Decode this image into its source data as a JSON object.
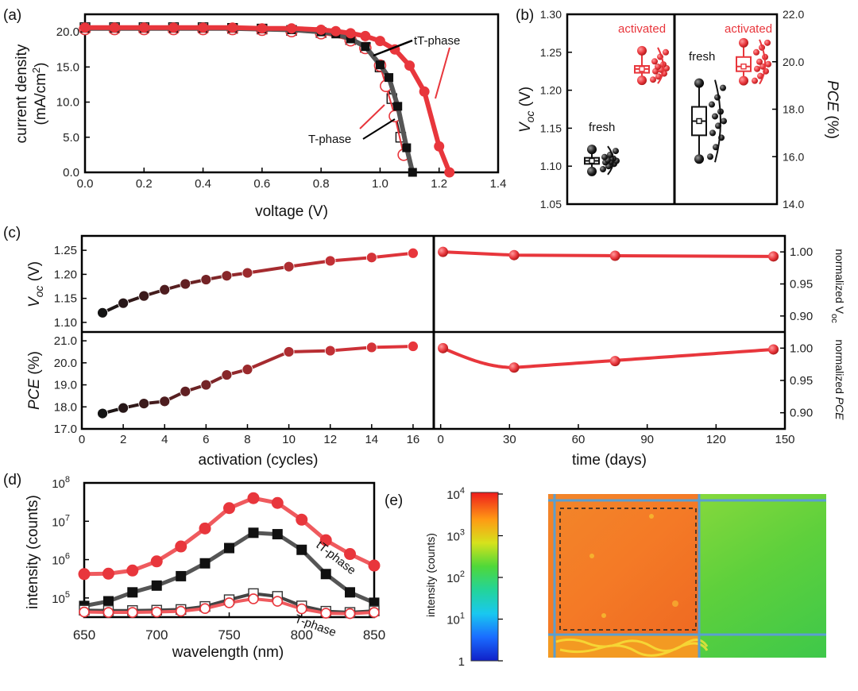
{
  "colors": {
    "red": "#e8363c",
    "darkred": "#8b0d0d",
    "black": "#111111",
    "grey": "#555555",
    "lightred": "#ef5a5e"
  },
  "panel_labels": {
    "a": "(a)",
    "b": "(b)",
    "c": "(c)",
    "d": "(d)",
    "e": "(e)"
  },
  "chart_data": [
    {
      "id": "a",
      "type": "line",
      "xlabel": "voltage (V)",
      "ylabel_line1": "current density",
      "ylabel_line2": "(mA/cm",
      "ylabel_sup": "2",
      "ylabel_close": ")",
      "xlim": [
        0,
        1.4
      ],
      "ylim": [
        0,
        22.5
      ],
      "xticks": [
        "0.0",
        "0.2",
        "0.4",
        "0.6",
        "0.8",
        "1.0",
        "1.2",
        "1.4"
      ],
      "yticks": [
        "0.0",
        "5.0",
        "10.0",
        "15.0",
        "20.0"
      ],
      "annotations": {
        "tT": "tT-phase",
        "T": "T-phase"
      },
      "series": [
        {
          "name": "tT-phase",
          "color": "#e8363c",
          "marker": "circle",
          "x": [
            0,
            0.1,
            0.2,
            0.3,
            0.4,
            0.5,
            0.6,
            0.7,
            0.8,
            0.85,
            0.9,
            0.95,
            1.0,
            1.05,
            1.1,
            1.15,
            1.2,
            1.235
          ],
          "y": [
            20.6,
            20.6,
            20.6,
            20.6,
            20.6,
            20.6,
            20.5,
            20.5,
            20.3,
            20.1,
            19.8,
            19.4,
            18.7,
            17.5,
            15.2,
            11.5,
            3.7,
            0
          ]
        },
        {
          "name": "T-phase",
          "color": "#555555",
          "marker": "square",
          "x": [
            0,
            0.1,
            0.2,
            0.3,
            0.4,
            0.5,
            0.6,
            0.7,
            0.8,
            0.85,
            0.9,
            0.95,
            1.0,
            1.03,
            1.06,
            1.09,
            1.11
          ],
          "y": [
            20.5,
            20.5,
            20.5,
            20.5,
            20.5,
            20.5,
            20.4,
            20.3,
            20.0,
            19.7,
            19.0,
            17.9,
            15.3,
            13.5,
            9.4,
            3.5,
            0
          ]
        },
        {
          "name": "T-phase (activated)",
          "color": "#e8363c",
          "marker": "circle-open",
          "x": [
            0,
            0.1,
            0.2,
            0.3,
            0.4,
            0.5,
            0.6,
            0.7,
            0.8,
            0.9,
            0.95,
            1.0,
            1.02,
            1.05,
            1.08
          ],
          "y": [
            20.4,
            20.4,
            20.4,
            20.4,
            20.4,
            20.4,
            20.3,
            20.1,
            19.8,
            18.8,
            17.7,
            15.2,
            12.3,
            8.0,
            2.5
          ]
        },
        {
          "name": "T-phase (fresh)",
          "color": "#111111",
          "marker": "square-open",
          "x": [
            0,
            0.1,
            0.2,
            0.3,
            0.4,
            0.5,
            0.6,
            0.7,
            0.8,
            0.9,
            0.95,
            1.0,
            1.04,
            1.07
          ],
          "y": [
            20.6,
            20.6,
            20.6,
            20.6,
            20.6,
            20.5,
            20.4,
            20.2,
            19.9,
            18.9,
            17.8,
            15.0,
            10.5,
            5.0
          ]
        }
      ]
    },
    {
      "id": "b",
      "type": "box",
      "ylabel_left": "V",
      "ylabel_left_sub": "oc",
      "ylabel_left_unit": " (V)",
      "ylabel_right": "PCE",
      "ylabel_right_unit": " (%)",
      "ylim_left": [
        1.05,
        1.3
      ],
      "ylim_right": [
        14.0,
        22.0
      ],
      "yticks_left": [
        "1.05",
        "1.10",
        "1.15",
        "1.20",
        "1.25",
        "1.30"
      ],
      "yticks_right": [
        "14.0",
        "16.0",
        "18.0",
        "20.0",
        "22.0"
      ],
      "groups": [
        {
          "label": "fresh",
          "metric": "Voc",
          "color": "#111111",
          "median": 1.107,
          "q1": 1.103,
          "q3": 1.111,
          "min": 1.093,
          "max": 1.122,
          "points": [
            1.096,
            1.1,
            1.103,
            1.105,
            1.106,
            1.107,
            1.108,
            1.11,
            1.112,
            1.115,
            1.12
          ]
        },
        {
          "label": "activated",
          "metric": "Voc",
          "color": "#e8363c",
          "median": 1.228,
          "q1": 1.223,
          "q3": 1.232,
          "min": 1.213,
          "max": 1.252,
          "points": [
            1.214,
            1.218,
            1.222,
            1.225,
            1.227,
            1.229,
            1.231,
            1.234,
            1.238,
            1.244,
            1.25
          ]
        },
        {
          "label": "fresh",
          "metric": "PCE",
          "color": "#111111",
          "median": 17.5,
          "q1": 16.9,
          "q3": 18.1,
          "min": 15.9,
          "max": 19.1,
          "points": [
            16.0,
            16.4,
            16.8,
            17.0,
            17.3,
            17.5,
            17.7,
            17.9,
            18.2,
            18.5,
            18.9
          ]
        },
        {
          "label": "activated",
          "metric": "PCE",
          "color": "#e8363c",
          "median": 19.8,
          "q1": 19.6,
          "q3": 20.2,
          "min": 19.2,
          "max": 20.8,
          "points": [
            19.2,
            19.4,
            19.6,
            19.7,
            19.8,
            19.9,
            20.0,
            20.2,
            20.4,
            20.6,
            20.8
          ]
        }
      ]
    },
    {
      "id": "c",
      "type": "line",
      "xlabel_left": "activation (cycles)",
      "xlabel_right": "time (days)",
      "ylabel_top": "V",
      "ylabel_top_sub": "oc",
      "ylabel_top_unit": " (V)",
      "ylabel_bottom": "PCE",
      "ylabel_bottom_unit": " (%)",
      "ylabel_right_top": "normalized V",
      "ylabel_right_top_sub": "oc",
      "ylabel_right_bottom": "normalized ",
      "ylabel_right_bottom_it": "PCE",
      "xlim_left": [
        0,
        17
      ],
      "xlim_right": [
        -3,
        150
      ],
      "xticks_left": [
        "0",
        "2",
        "4",
        "6",
        "8",
        "10",
        "12",
        "14",
        "16"
      ],
      "xticks_right": [
        "0",
        "30",
        "60",
        "90",
        "120",
        "150"
      ],
      "ylim_voc": [
        1.08,
        1.28
      ],
      "yticks_voc": [
        "1.10",
        "1.15",
        "1.20",
        "1.25"
      ],
      "ylim_pce": [
        17.0,
        21.4
      ],
      "yticks_pce": [
        "17.0",
        "18.0",
        "19.0",
        "20.0",
        "21.0"
      ],
      "ylim_norm": [
        0.875,
        1.025
      ],
      "yticks_norm": [
        "0.90",
        "0.95",
        "1.00"
      ],
      "cycles": [
        1,
        2,
        3,
        4,
        5,
        6,
        7,
        8,
        10,
        12,
        14,
        16
      ],
      "voc": [
        1.12,
        1.14,
        1.155,
        1.168,
        1.18,
        1.189,
        1.197,
        1.203,
        1.216,
        1.228,
        1.235,
        1.244
      ],
      "pce": [
        17.7,
        17.95,
        18.15,
        18.25,
        18.7,
        19.0,
        19.45,
        19.7,
        20.5,
        20.55,
        20.7,
        20.75
      ],
      "days": [
        1,
        32,
        76,
        145
      ],
      "norm_voc": [
        1.0,
        0.995,
        0.994,
        0.993
      ],
      "norm_pce": [
        1.0,
        0.97,
        0.98,
        0.998
      ]
    },
    {
      "id": "d",
      "type": "line",
      "yscale": "log",
      "xlabel": "wavelength (nm)",
      "ylabel": "intensity (counts)",
      "xlim": [
        650,
        850
      ],
      "ylim_log10": [
        4.5,
        8.0
      ],
      "xticks": [
        "650",
        "700",
        "750",
        "800",
        "850"
      ],
      "yticks_base": [
        "10",
        "10",
        "10",
        "10"
      ],
      "yticks_exp": [
        "5",
        "6",
        "7",
        "8"
      ],
      "annotations": {
        "tT": "tT-phase",
        "T": "T-phase"
      },
      "x": [
        650,
        666.7,
        683.3,
        700,
        716.7,
        733.3,
        750,
        766.7,
        783.3,
        800,
        816.7,
        833.3,
        850
      ],
      "series": [
        {
          "name": "tT-phase activated",
          "color": "#e8363c",
          "marker": "circle",
          "y": [
            420000,
            430000,
            520000,
            900000,
            2200000,
            6500000,
            22000000,
            40000000,
            30000000,
            11000000,
            3200000,
            1400000,
            700000
          ]
        },
        {
          "name": "tT-phase fresh",
          "color": "#555555",
          "marker": "square",
          "y": [
            62000,
            82000,
            140000,
            210000,
            370000,
            800000,
            2000000,
            5000000,
            4600000,
            1800000,
            420000,
            140000,
            75000
          ]
        },
        {
          "name": "T-phase fresh",
          "color": "#333333",
          "marker": "square-open",
          "y": [
            48000,
            47000,
            47000,
            48000,
            50000,
            60000,
            90000,
            130000,
            110000,
            62000,
            45000,
            42000,
            46000
          ]
        },
        {
          "name": "T-phase activated",
          "color": "#e8363c",
          "marker": "circle-open",
          "y": [
            43000,
            42000,
            42000,
            43000,
            45000,
            53000,
            75000,
            95000,
            82000,
            52000,
            40000,
            39000,
            42000
          ]
        }
      ]
    },
    {
      "id": "e",
      "type": "heatmap",
      "colorbar_label": "intensity (counts)",
      "scale": "log",
      "ticks_base": [
        "1",
        "10",
        "10",
        "10",
        "10"
      ],
      "ticks_exp": [
        "",
        "1",
        "2",
        "3",
        "4"
      ]
    }
  ]
}
